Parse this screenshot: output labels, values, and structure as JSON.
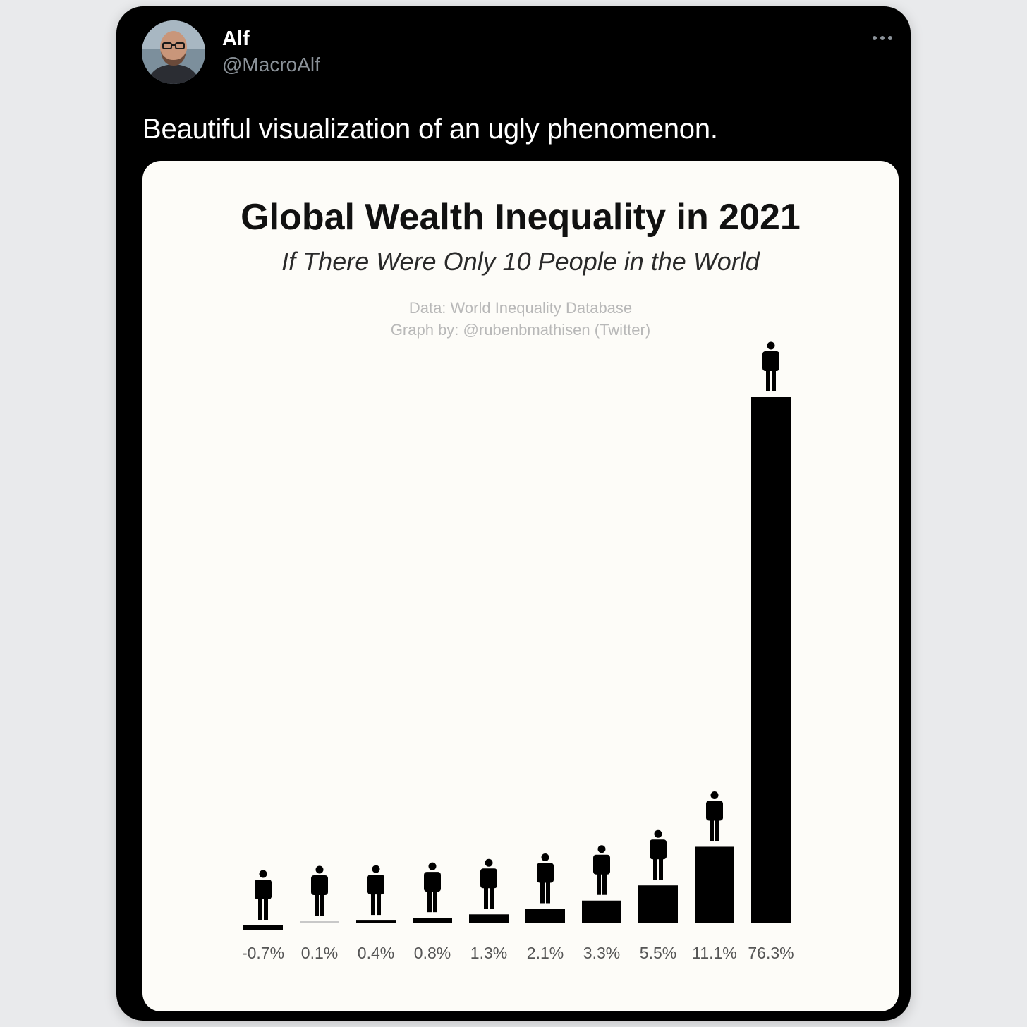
{
  "tweet": {
    "display_name": "Alf",
    "handle": "@MacroAlf",
    "text": "Beautiful visualization of an ugly phenomenon.",
    "more_icon": "more-horizontal-icon"
  },
  "media": {
    "title": "Global Wealth Inequality in 2021",
    "subtitle": "If There Were Only 10 People in the World",
    "source_line": "Data: World Inequality Database",
    "credit_line": "Graph by: @rubenbmathisen (Twitter)"
  },
  "chart_data": {
    "type": "bar",
    "title": "Global Wealth Inequality in 2021",
    "subtitle": "If There Were Only 10 People in the World",
    "categories": [
      "-0.7%",
      "0.1%",
      "0.4%",
      "0.8%",
      "1.3%",
      "2.1%",
      "3.3%",
      "5.5%",
      "11.1%",
      "76.3%"
    ],
    "values": [
      -0.7,
      0.1,
      0.4,
      0.8,
      1.3,
      2.1,
      3.3,
      5.5,
      11.1,
      76.3
    ],
    "unit": "%",
    "bar_color": "#000000",
    "grid": false,
    "legend": "none",
    "marker_icon": "person-icon"
  }
}
